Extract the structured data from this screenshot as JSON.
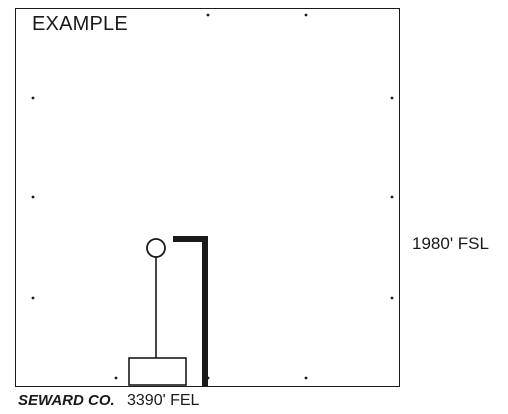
{
  "diagram": {
    "title": "EXAMPLE",
    "south_line_distance": "1980' FSL",
    "county_label": "SEWARD CO.",
    "east_line_distance": "3390' FEL"
  },
  "colors": {
    "ink": "#1a1a1a",
    "background": "#ffffff"
  }
}
